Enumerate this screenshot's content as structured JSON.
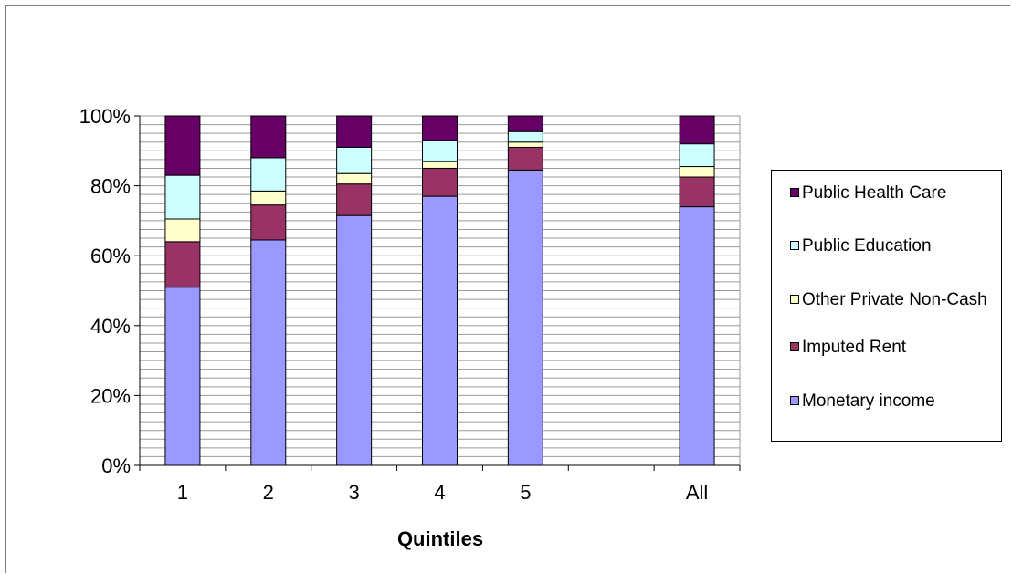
{
  "chart_data": {
    "type": "bar",
    "stacked": true,
    "normalized": true,
    "categories": [
      "1",
      "2",
      "3",
      "4",
      "5",
      "",
      "All"
    ],
    "xlabel": "Quintiles",
    "ylabel": "",
    "ylim": [
      0,
      100
    ],
    "y_tick_labels": [
      "0%",
      "20%",
      "40%",
      "60%",
      "80%",
      "100%"
    ],
    "grid": true,
    "legend_position": "right",
    "series": [
      {
        "name": "Monetary income",
        "color": "#9999FF",
        "values": [
          51,
          64.5,
          71.5,
          77,
          84.5,
          null,
          74
        ]
      },
      {
        "name": "Imputed Rent",
        "color": "#993366",
        "values": [
          13,
          10,
          9,
          8,
          6.5,
          null,
          8.5
        ]
      },
      {
        "name": "Other Private Non-Cash",
        "color": "#FFFFCC",
        "values": [
          6.5,
          4,
          3,
          2,
          1.5,
          null,
          3
        ]
      },
      {
        "name": "Public Education",
        "color": "#CCFFFF",
        "values": [
          12.5,
          9.5,
          7.5,
          6,
          3,
          null,
          6.5
        ]
      },
      {
        "name": "Public Health Care",
        "color": "#660066",
        "values": [
          17,
          12,
          9,
          7,
          4.5,
          null,
          8
        ]
      }
    ]
  }
}
